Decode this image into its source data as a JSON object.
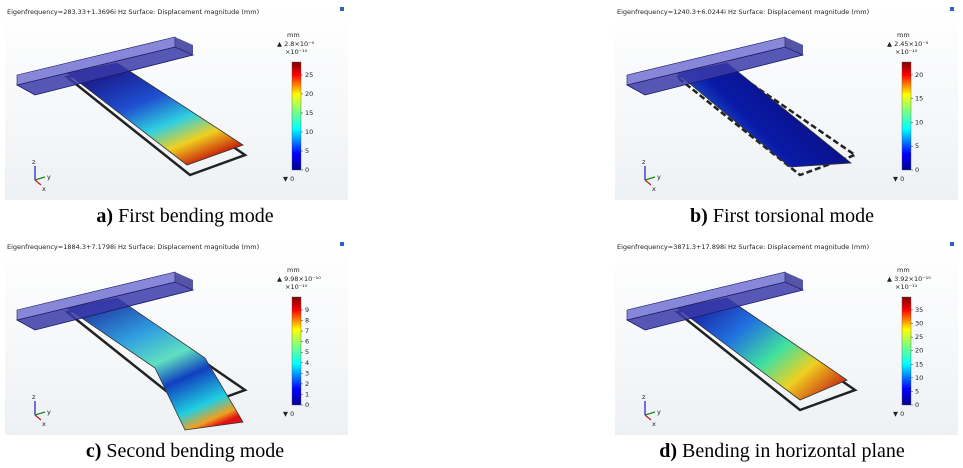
{
  "panels": [
    {
      "header": "Eigenfrequency=283.33+1.3696i Hz  Surface: Displacement magnitude (mm)",
      "unit": "mm",
      "max": "▲ 2.8×10⁻⁹",
      "scale": "×10⁻¹⁰",
      "ticks": [
        25,
        20,
        15,
        10,
        5,
        0
      ],
      "min": "▼ 0",
      "axes": [
        "z",
        "y",
        "x"
      ],
      "caption_label": "a)",
      "caption": " First bending mode"
    },
    {
      "header": "Eigenfrequency=1240.3+6.0244i Hz  Surface: Displacement magnitude (mm)",
      "unit": "mm",
      "max": "▲ 2.45×10⁻⁹",
      "scale": "×10⁻¹⁰",
      "ticks": [
        20,
        15,
        10,
        5,
        0
      ],
      "min": "▼ 0",
      "axes": [
        "z",
        "y",
        "x"
      ],
      "caption_label": "b)",
      "caption": " First torsional mode"
    },
    {
      "header": "Eigenfrequency=1884.3+7.1798i Hz  Surface: Displacement magnitude (mm)",
      "unit": "mm",
      "max": "▲ 9.98×10⁻¹⁰",
      "scale": "×10⁻¹⁰",
      "ticks": [
        9,
        8,
        7,
        6,
        5,
        4,
        3,
        2,
        1,
        0
      ],
      "min": "▼ 0",
      "axes": [
        "z",
        "y",
        "x"
      ],
      "caption_label": "c)",
      "caption": " Second bending mode"
    },
    {
      "header": "Eigenfrequency=3871.3+17.898i Hz  Surface: Displacement magnitude (mm)",
      "unit": "mm",
      "max": "▲ 3.92×10⁻¹⁰",
      "scale": "×10⁻¹¹",
      "ticks": [
        35,
        30,
        25,
        20,
        15,
        10,
        5,
        0
      ],
      "min": "▼ 0",
      "axes": [
        "z",
        "y",
        "x"
      ],
      "caption_label": "d)",
      "caption": " Bending in horizontal plane"
    }
  ]
}
